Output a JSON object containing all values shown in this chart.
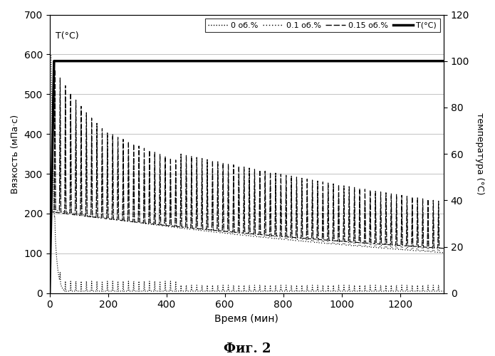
{
  "title": "Фиг. 2",
  "ylabel_left": "Вязкость (мПа·с)",
  "ylabel_right": "температура (°С)",
  "xlabel": "Время (мин)",
  "label_T": "T(°C)",
  "ylim_left": [
    0,
    700
  ],
  "ylim_right": [
    0,
    120
  ],
  "xlim": [
    0,
    1350
  ],
  "yticks_left": [
    0,
    100,
    200,
    300,
    400,
    500,
    600,
    700
  ],
  "yticks_right": [
    0,
    20,
    40,
    60,
    80,
    100,
    120
  ],
  "xticks": [
    0,
    200,
    400,
    600,
    800,
    1000,
    1200
  ],
  "legend_labels": [
    "0 об.%",
    "0.1 об.%",
    "0.15 об.%",
    "T(°C)"
  ],
  "bg_color": "#ffffff",
  "grid_color": "#aaaaaa",
  "line_color": "#000000"
}
